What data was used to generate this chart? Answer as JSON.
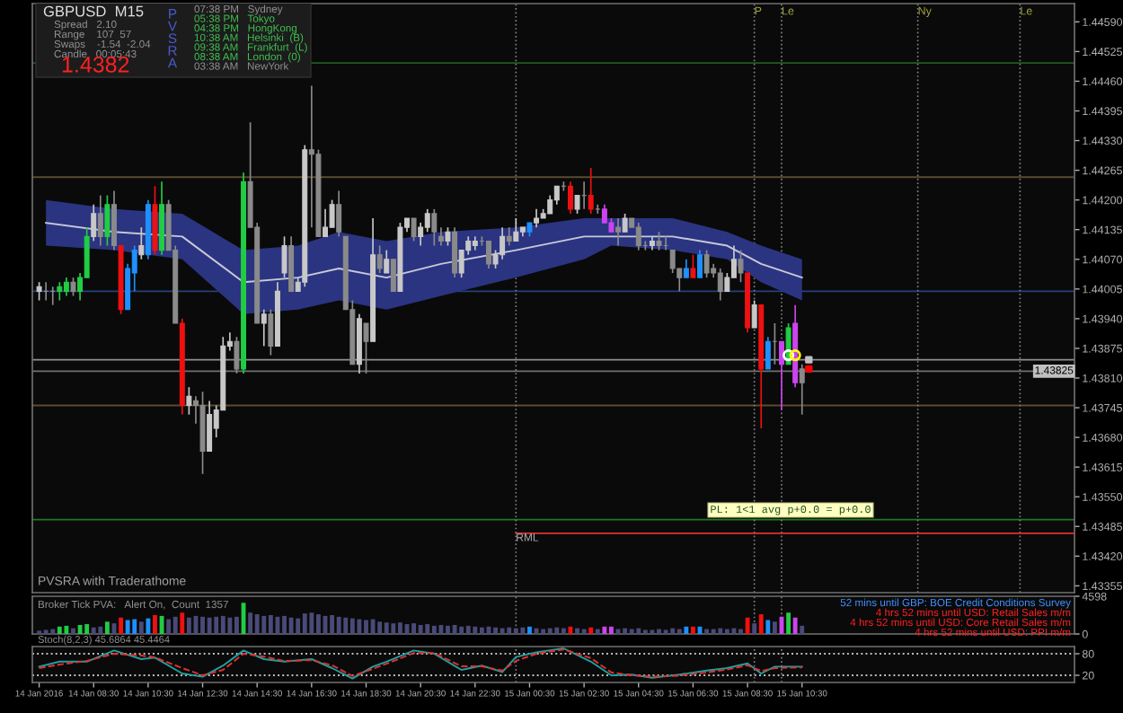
{
  "chart_data": [
    {
      "type": "candlestick",
      "xlim": [
        "2016-01-14T06:15",
        "2016-01-15T20:30"
      ],
      "ylim": [
        1.4334,
        1.4463
      ],
      "tick_labels": "y",
      "yticks": [
        {
          "value": 1.43355,
          "label": "1.43355"
        },
        {
          "value": 1.4342,
          "label": "1.43420"
        },
        {
          "value": 1.43485,
          "label": "1.43485"
        },
        {
          "value": 1.4355,
          "label": "1.43550"
        },
        {
          "value": 1.43615,
          "label": "1.43615"
        },
        {
          "value": 1.4368,
          "label": "1.43680"
        },
        {
          "value": 1.43745,
          "label": "1.43745"
        },
        {
          "value": 1.4381,
          "label": "1.43810"
        },
        {
          "value": 1.43875,
          "label": "1.43875"
        },
        {
          "value": 1.4394,
          "label": "1.43940"
        },
        {
          "value": 1.44005,
          "label": "1.44005"
        },
        {
          "value": 1.4407,
          "label": "1.44070"
        },
        {
          "value": 1.44135,
          "label": "1.44135"
        },
        {
          "value": 1.442,
          "label": "1.44200"
        },
        {
          "value": 1.44265,
          "label": "1.44265"
        },
        {
          "value": 1.4433,
          "label": "1.44330"
        },
        {
          "value": 1.44395,
          "label": "1.44395"
        },
        {
          "value": 1.4446,
          "label": "1.44460"
        },
        {
          "value": 1.44525,
          "label": "1.44525"
        },
        {
          "value": 1.4459,
          "label": "1.44590"
        }
      ],
      "x": [
        "2016-01-14T06:30",
        "2016-01-14T06:45",
        "2016-01-14T07:00",
        "2016-01-14T07:15",
        "2016-01-14T07:30",
        "2016-01-14T07:45",
        "2016-01-14T08:00",
        "2016-01-14T08:15",
        "2016-01-14T08:30",
        "2016-01-14T08:45",
        "2016-01-14T09:00",
        "2016-01-14T09:15",
        "2016-01-14T09:30",
        "2016-01-14T09:45",
        "2016-01-14T10:00",
        "2016-01-14T10:15",
        "2016-01-14T10:30",
        "2016-01-14T10:45",
        "2016-01-14T11:00",
        "2016-01-14T11:15",
        "2016-01-14T11:30",
        "2016-01-14T11:45",
        "2016-01-14T12:00",
        "2016-01-14T12:15",
        "2016-01-14T12:30",
        "2016-01-14T12:45",
        "2016-01-14T13:00",
        "2016-01-14T13:15",
        "2016-01-14T13:30",
        "2016-01-14T13:45",
        "2016-01-14T14:00",
        "2016-01-14T14:15",
        "2016-01-14T14:30",
        "2016-01-14T14:45",
        "2016-01-14T15:00",
        "2016-01-14T15:15",
        "2016-01-14T15:30",
        "2016-01-14T15:45",
        "2016-01-14T16:00",
        "2016-01-14T16:15",
        "2016-01-14T16:30",
        "2016-01-14T16:45",
        "2016-01-14T17:00",
        "2016-01-14T17:15",
        "2016-01-14T17:30",
        "2016-01-14T17:45",
        "2016-01-14T18:00",
        "2016-01-14T18:15",
        "2016-01-14T18:30",
        "2016-01-14T18:45",
        "2016-01-14T19:00",
        "2016-01-14T19:15",
        "2016-01-14T19:30",
        "2016-01-14T19:45",
        "2016-01-14T20:00",
        "2016-01-14T20:15",
        "2016-01-14T20:30",
        "2016-01-14T20:45",
        "2016-01-14T21:00",
        "2016-01-14T21:15",
        "2016-01-14T21:30",
        "2016-01-14T21:45",
        "2016-01-14T22:00",
        "2016-01-14T22:15",
        "2016-01-14T22:30",
        "2016-01-14T22:45",
        "2016-01-14T23:00",
        "2016-01-14T23:15",
        "2016-01-14T23:30",
        "2016-01-14T23:45",
        "2016-01-15T00:00",
        "2016-01-15T00:15",
        "2016-01-15T00:30",
        "2016-01-15T00:45",
        "2016-01-15T01:00",
        "2016-01-15T01:15",
        "2016-01-15T01:30",
        "2016-01-15T01:45",
        "2016-01-15T02:00",
        "2016-01-15T02:15",
        "2016-01-15T02:30",
        "2016-01-15T02:45",
        "2016-01-15T03:00",
        "2016-01-15T03:15",
        "2016-01-15T03:30",
        "2016-01-15T03:45",
        "2016-01-15T04:00",
        "2016-01-15T04:15",
        "2016-01-15T04:30",
        "2016-01-15T04:45",
        "2016-01-15T05:00",
        "2016-01-15T05:15",
        "2016-01-15T05:30",
        "2016-01-15T05:45",
        "2016-01-15T06:00",
        "2016-01-15T06:15",
        "2016-01-15T06:30",
        "2016-01-15T06:45",
        "2016-01-15T07:00",
        "2016-01-15T07:15",
        "2016-01-15T07:30",
        "2016-01-15T07:45",
        "2016-01-15T08:00",
        "2016-01-15T08:15",
        "2016-01-15T08:30",
        "2016-01-15T08:45",
        "2016-01-15T09:00",
        "2016-01-15T09:15",
        "2016-01-15T09:30",
        "2016-01-15T09:45",
        "2016-01-15T10:00",
        "2016-01-15T10:15",
        "2016-01-15T10:30"
      ],
      "ohlc": [
        [
          1.44,
          1.4402,
          1.4398,
          1.4401
        ],
        [
          1.44,
          1.4402,
          1.4398,
          1.44
        ],
        [
          1.44,
          1.4401,
          1.4397,
          1.44
        ],
        [
          1.44,
          1.4402,
          1.4398,
          1.4401
        ],
        [
          1.44,
          1.4403,
          1.4399,
          1.4402
        ],
        [
          1.4402,
          1.4403,
          1.4399,
          1.44
        ],
        [
          1.44,
          1.4404,
          1.4398,
          1.4403
        ],
        [
          1.4403,
          1.4414,
          1.4403,
          1.4412
        ],
        [
          1.4412,
          1.4419,
          1.4411,
          1.4417
        ],
        [
          1.4417,
          1.4421,
          1.441,
          1.4412
        ],
        [
          1.4412,
          1.4421,
          1.441,
          1.4419
        ],
        [
          1.4419,
          1.4422,
          1.4409,
          1.441
        ],
        [
          1.441,
          1.441,
          1.4395,
          1.4396
        ],
        [
          1.4396,
          1.4406,
          1.4396,
          1.4405
        ],
        [
          1.4404,
          1.441,
          1.44,
          1.4409
        ],
        [
          1.4408,
          1.4414,
          1.4407,
          1.441
        ],
        [
          1.4408,
          1.442,
          1.4407,
          1.4419
        ],
        [
          1.4419,
          1.4423,
          1.4408,
          1.4409
        ],
        [
          1.4409,
          1.4424,
          1.4408,
          1.4419
        ],
        [
          1.4419,
          1.442,
          1.4409,
          1.4409
        ],
        [
          1.4409,
          1.441,
          1.4393,
          1.4393
        ],
        [
          1.4393,
          1.4394,
          1.4373,
          1.4375
        ],
        [
          1.4375,
          1.4379,
          1.4373,
          1.4377
        ],
        [
          1.4376,
          1.4377,
          1.4371,
          1.4375
        ],
        [
          1.4375,
          1.4378,
          1.436,
          1.4365
        ],
        [
          1.4365,
          1.4376,
          1.4365,
          1.4373
        ],
        [
          1.437,
          1.4375,
          1.4368,
          1.4374
        ],
        [
          1.4374,
          1.439,
          1.4374,
          1.4388
        ],
        [
          1.4388,
          1.4391,
          1.4387,
          1.4389
        ],
        [
          1.4389,
          1.439,
          1.4382,
          1.4383
        ],
        [
          1.4383,
          1.4426,
          1.4382,
          1.4424
        ],
        [
          1.4424,
          1.4437,
          1.4414,
          1.4414
        ],
        [
          1.4414,
          1.4415,
          1.4393,
          1.4393
        ],
        [
          1.4393,
          1.4396,
          1.4388,
          1.4395
        ],
        [
          1.4395,
          1.4396,
          1.4386,
          1.4388
        ],
        [
          1.4388,
          1.4402,
          1.4388,
          1.44
        ],
        [
          1.4404,
          1.4412,
          1.4403,
          1.441
        ],
        [
          1.441,
          1.4412,
          1.44,
          1.44
        ],
        [
          1.44,
          1.4403,
          1.44,
          1.4402
        ],
        [
          1.4402,
          1.4432,
          1.4401,
          1.4431
        ],
        [
          1.4431,
          1.4445,
          1.4414,
          1.443
        ],
        [
          1.443,
          1.4431,
          1.4412,
          1.4412
        ],
        [
          1.4412,
          1.4418,
          1.4412,
          1.4414
        ],
        [
          1.4414,
          1.442,
          1.4414,
          1.4419
        ],
        [
          1.4419,
          1.4422,
          1.4412,
          1.4413
        ],
        [
          1.4412,
          1.4412,
          1.4396,
          1.4396
        ],
        [
          1.4396,
          1.4398,
          1.4384,
          1.4384
        ],
        [
          1.4384,
          1.4395,
          1.4382,
          1.4394
        ],
        [
          1.4393,
          1.4393,
          1.4382,
          1.4389
        ],
        [
          1.4389,
          1.4416,
          1.4389,
          1.4408
        ],
        [
          1.4408,
          1.441,
          1.4404,
          1.4405
        ],
        [
          1.4404,
          1.4409,
          1.4404,
          1.4407
        ],
        [
          1.4407,
          1.4407,
          1.44,
          1.44
        ],
        [
          1.44,
          1.4415,
          1.44,
          1.4414
        ],
        [
          1.4414,
          1.4416,
          1.4413,
          1.4416
        ],
        [
          1.4416,
          1.4416,
          1.4411,
          1.4412
        ],
        [
          1.4412,
          1.4415,
          1.441,
          1.4414
        ],
        [
          1.4414,
          1.4418,
          1.4413,
          1.4417
        ],
        [
          1.4417,
          1.4418,
          1.441,
          1.4413
        ],
        [
          1.4412,
          1.4414,
          1.441,
          1.4411
        ],
        [
          1.4411,
          1.4414,
          1.441,
          1.4413
        ],
        [
          1.4413,
          1.4414,
          1.4403,
          1.4404
        ],
        [
          1.4404,
          1.4409,
          1.4403,
          1.4409
        ],
        [
          1.4409,
          1.4412,
          1.4408,
          1.4411
        ],
        [
          1.441,
          1.4412,
          1.4409,
          1.4411
        ],
        [
          1.4411,
          1.4412,
          1.441,
          1.4411
        ],
        [
          1.4411,
          1.4411,
          1.4405,
          1.4406
        ],
        [
          1.4406,
          1.4409,
          1.4405,
          1.4408
        ],
        [
          1.4408,
          1.4414,
          1.4407,
          1.4412
        ],
        [
          1.4412,
          1.4414,
          1.441,
          1.4411
        ],
        [
          1.4411,
          1.4416,
          1.4411,
          1.4413
        ],
        [
          1.4413,
          1.4414,
          1.4412,
          1.4414
        ],
        [
          1.4413,
          1.4415,
          1.4412,
          1.4415
        ],
        [
          1.4415,
          1.4418,
          1.4414,
          1.4416
        ],
        [
          1.4416,
          1.4418,
          1.4416,
          1.4417
        ],
        [
          1.4417,
          1.4421,
          1.4417,
          1.442
        ],
        [
          1.442,
          1.4423,
          1.4419,
          1.4423
        ],
        [
          1.4423,
          1.4424,
          1.4422,
          1.4423
        ],
        [
          1.4423,
          1.4424,
          1.4417,
          1.4418
        ],
        [
          1.4418,
          1.4421,
          1.4417,
          1.4421
        ],
        [
          1.4421,
          1.4424,
          1.4418,
          1.4421
        ],
        [
          1.4421,
          1.4427,
          1.4417,
          1.4418
        ],
        [
          1.4418,
          1.4419,
          1.4417,
          1.4418
        ],
        [
          1.4418,
          1.4419,
          1.4415,
          1.4415
        ],
        [
          1.4415,
          1.4416,
          1.4413,
          1.4413
        ],
        [
          1.4414,
          1.4416,
          1.441,
          1.4413
        ],
        [
          1.4413,
          1.4417,
          1.4413,
          1.4416
        ],
        [
          1.4416,
          1.4416,
          1.4414,
          1.4414
        ],
        [
          1.4414,
          1.4415,
          1.4409,
          1.441
        ],
        [
          1.441,
          1.4411,
          1.4409,
          1.441
        ],
        [
          1.441,
          1.4412,
          1.4409,
          1.4411
        ],
        [
          1.4411,
          1.4413,
          1.4409,
          1.441
        ],
        [
          1.441,
          1.4412,
          1.4409,
          1.441
        ],
        [
          1.4409,
          1.4409,
          1.4404,
          1.4405
        ],
        [
          1.4405,
          1.4405,
          1.44,
          1.4403
        ],
        [
          1.4403,
          1.4407,
          1.4403,
          1.4405
        ],
        [
          1.4405,
          1.4408,
          1.4403,
          1.4403
        ],
        [
          1.4403,
          1.4409,
          1.4403,
          1.4408
        ],
        [
          1.4408,
          1.4409,
          1.4403,
          1.4404
        ],
        [
          1.4405,
          1.4406,
          1.4403,
          1.4404
        ],
        [
          1.4404,
          1.4405,
          1.4398,
          1.44
        ],
        [
          1.44,
          1.4404,
          1.44,
          1.4403
        ],
        [
          1.4403,
          1.441,
          1.4403,
          1.4407
        ],
        [
          1.4407,
          1.4409,
          1.4402,
          1.4404
        ],
        [
          1.4404,
          1.4404,
          1.4391,
          1.4392
        ],
        [
          1.4392,
          1.4398,
          1.4392,
          1.4397
        ],
        [
          1.4397,
          1.4397,
          1.437,
          1.4383
        ],
        [
          1.4383,
          1.439,
          1.4383,
          1.4389
        ],
        [
          1.4389,
          1.4393,
          1.4384,
          1.4389
        ],
        [
          1.4389,
          1.4389,
          1.4374,
          1.4384
        ],
        [
          1.4384,
          1.4393,
          1.4384,
          1.4392
        ],
        [
          1.4393,
          1.4397,
          1.4379,
          1.438
        ],
        [
          1.4383,
          1.4384,
          1.4373,
          1.438
        ]
      ],
      "colors": [
        "#c8c8c8",
        "#8a8a8a",
        "#8a8a8a",
        "#22cc44",
        "#22cc44",
        "#8a8a8a",
        "#22cc44",
        "#22cc44",
        "#c8c8c8",
        "#8a8a8a",
        "#22cc44",
        "#8a8a8a",
        "#ee1111",
        "#1e90ff",
        "#1e90ff",
        "#c8c8c8",
        "#1e90ff",
        "#ee1111",
        "#22cc44",
        "#8a8a8a",
        "#8a8a8a",
        "#ee1111",
        "#c8c8c8",
        "#8a8a8a",
        "#8a8a8a",
        "#c8c8c8",
        "#c8c8c8",
        "#c8c8c8",
        "#c8c8c8",
        "#8a8a8a",
        "#22cc44",
        "#8a8a8a",
        "#8a8a8a",
        "#c8c8c8",
        "#8a8a8a",
        "#c8c8c8",
        "#c8c8c8",
        "#8a8a8a",
        "#c8c8c8",
        "#c8c8c8",
        "#8a8a8a",
        "#8a8a8a",
        "#c8c8c8",
        "#c8c8c8",
        "#8a8a8a",
        "#8a8a8a",
        "#8a8a8a",
        "#c8c8c8",
        "#8a8a8a",
        "#c8c8c8",
        "#8a8a8a",
        "#c8c8c8",
        "#8a8a8a",
        "#c8c8c8",
        "#c8c8c8",
        "#8a8a8a",
        "#c8c8c8",
        "#c8c8c8",
        "#8a8a8a",
        "#8a8a8a",
        "#c8c8c8",
        "#8a8a8a",
        "#c8c8c8",
        "#c8c8c8",
        "#c8c8c8",
        "#8a8a8a",
        "#8a8a8a",
        "#c8c8c8",
        "#c8c8c8",
        "#8a8a8a",
        "#c8c8c8",
        "#c8c8c8",
        "#1e90ff",
        "#c8c8c8",
        "#c8c8c8",
        "#c8c8c8",
        "#c8c8c8",
        "#8a8a8a",
        "#ee1111",
        "#c8c8c8",
        "#8a8a8a",
        "#ee1111",
        "#8a8a8a",
        "#cc44ee",
        "#cc44ee",
        "#8a8a8a",
        "#c8c8c8",
        "#8a8a8a",
        "#8a8a8a",
        "#8a8a8a",
        "#c8c8c8",
        "#8a8a8a",
        "#8a8a8a",
        "#8a8a8a",
        "#8a8a8a",
        "#1e90ff",
        "#ee1111",
        "#1e90ff",
        "#8a8a8a",
        "#8a8a8a",
        "#8a8a8a",
        "#c8c8c8",
        "#c8c8c8",
        "#8a8a8a",
        "#ee1111",
        "#c8c8c8",
        "#ee1111",
        "#1e90ff",
        "#8a8a8a",
        "#cc44ee",
        "#22cc44",
        "#cc44ee",
        "#8a8a8a"
      ],
      "series": [
        {
          "type": "line",
          "color": "#c8c8d8",
          "x": [
            "2016-01-14T06:45",
            "2016-01-14T09:15",
            "2016-01-14T11:45",
            "2016-01-14T14:00",
            "2016-01-14T16:00",
            "2016-01-14T17:30",
            "2016-01-14T19:15",
            "2016-01-14T21:15",
            "2016-01-15T00:00",
            "2016-01-15T02:30",
            "2016-01-15T03:30",
            "2016-01-15T05:45",
            "2016-01-15T07:45",
            "2016-01-15T09:00",
            "2016-01-15T10:30"
          ],
          "values": [
            1.4415,
            1.4413,
            1.4412,
            1.4402,
            1.4403,
            1.4405,
            1.4403,
            1.4406,
            1.4409,
            1.4412,
            1.4412,
            1.4412,
            1.441,
            1.4406,
            1.4403
          ],
          "lower": [
            1.441,
            1.4409,
            1.4407,
            1.4395,
            1.4396,
            1.4398,
            1.4396,
            1.4399,
            1.4403,
            1.4407,
            1.441,
            1.4409,
            1.4407,
            1.4402,
            1.4398
          ],
          "upper": [
            1.442,
            1.4418,
            1.4417,
            1.4409,
            1.441,
            1.4413,
            1.4411,
            1.4413,
            1.4414,
            1.4416,
            1.4416,
            1.4416,
            1.4413,
            1.441,
            1.4407
          ]
        },
        {
          "type": "line",
          "name": "RML",
          "color": "#e03030",
          "x": [
            "2016-01-15T00:00",
            "2016-01-15T20:30"
          ],
          "values": [
            1.4347,
            1.4347
          ]
        },
        {
          "type": "scatter",
          "marker": "circle",
          "colors": [
            "#ffffff",
            "#ffff00"
          ],
          "x": [
            "2016-01-15T10:00",
            "2016-01-15T10:15"
          ],
          "values": [
            1.4386,
            1.4386
          ]
        },
        {
          "type": "scatter",
          "marker": "square",
          "colors": [
            "#c0c0c0",
            "#ff0000"
          ],
          "x": [
            "2016-01-15T10:45",
            "2016-01-15T10:45"
          ],
          "values": [
            1.4385,
            1.4383
          ]
        }
      ],
      "ref_lines": [
        {
          "axis": "y",
          "value": 1.445,
          "color": "#1f5a1f"
        },
        {
          "axis": "y",
          "value": 1.4425,
          "color": "#5a4a30"
        },
        {
          "axis": "y",
          "value": 1.44,
          "color": "#24407a"
        },
        {
          "axis": "y",
          "value": 1.4385,
          "color": "#909090"
        },
        {
          "axis": "y",
          "value": 1.43825,
          "label": "1.43825",
          "color": "#707070"
        },
        {
          "axis": "y",
          "value": 1.4375,
          "color": "#5a4a30"
        },
        {
          "axis": "y",
          "value": 1.435,
          "color": "#1f7a1f"
        },
        {
          "axis": "x",
          "value": "2016-01-15T00:00",
          "color": "#808080",
          "line_style": "dotted"
        },
        {
          "axis": "x",
          "value": "2016-01-15T08:45",
          "label": "P",
          "color": "#808080",
          "line_style": "dotted"
        },
        {
          "axis": "x",
          "value": "2016-01-15T09:45",
          "label": "Le",
          "color": "#808080",
          "line_style": "dotted"
        },
        {
          "axis": "x",
          "value": "2016-01-15T14:45",
          "label": "Ny",
          "color": "#808080",
          "line_style": "dotted"
        },
        {
          "axis": "x",
          "value": "2016-01-15T18:30",
          "label": "Le",
          "color": "#808080",
          "line_style": "dotted"
        }
      ],
      "annotations": [
        "GBPUSD  M15",
        "Spread   2.10",
        "Range    107  57",
        "Swaps    -1.54  -2.04",
        "Candle   00:05:43",
        "1.4382",
        "PVSRA",
        "07:38 PM   Sydney",
        "05:38 PM   Tokyo",
        "04:38 PM   HongKong",
        "10:38 AM   Helsinki  (B)",
        "09:38 AM   Frankfurt  (L)",
        "08:38 AM   London  (0)",
        "03:38 AM   NewYork",
        "PVSRA with Traderathome",
        "PL: 1<1 avg p+0.0 = p+0.0"
      ]
    },
    {
      "type": "bar",
      "xlim": [
        "2016-01-14T06:15",
        "2016-01-15T20:30"
      ],
      "ylim": [
        0,
        4598
      ],
      "yticks": [
        0,
        4598
      ],
      "tick_labels": "y",
      "x": [
        "2016-01-14T06:30",
        "2016-01-14T06:45",
        "2016-01-14T07:00",
        "2016-01-14T07:15",
        "2016-01-14T07:30",
        "2016-01-14T07:45",
        "2016-01-14T08:00",
        "2016-01-14T08:15",
        "2016-01-14T08:30",
        "2016-01-14T08:45",
        "2016-01-14T09:00",
        "2016-01-14T09:15",
        "2016-01-14T09:30",
        "2016-01-14T09:45",
        "2016-01-14T10:00",
        "2016-01-14T10:15",
        "2016-01-14T10:30",
        "2016-01-14T10:45",
        "2016-01-14T11:00",
        "2016-01-14T11:15",
        "2016-01-14T11:30",
        "2016-01-14T11:45",
        "2016-01-14T12:00",
        "2016-01-14T12:15",
        "2016-01-14T12:30",
        "2016-01-14T12:45",
        "2016-01-14T13:00",
        "2016-01-14T13:15",
        "2016-01-14T13:30",
        "2016-01-14T13:45",
        "2016-01-14T14:00",
        "2016-01-14T14:15",
        "2016-01-14T14:30",
        "2016-01-14T14:45",
        "2016-01-14T15:00",
        "2016-01-14T15:15",
        "2016-01-14T15:30",
        "2016-01-14T15:45",
        "2016-01-14T16:00",
        "2016-01-14T16:15",
        "2016-01-14T16:30",
        "2016-01-14T16:45",
        "2016-01-14T17:00",
        "2016-01-14T17:15",
        "2016-01-14T17:30",
        "2016-01-14T17:45",
        "2016-01-14T18:00",
        "2016-01-14T18:15",
        "2016-01-14T18:30",
        "2016-01-14T18:45",
        "2016-01-14T19:00",
        "2016-01-14T19:15",
        "2016-01-14T19:30",
        "2016-01-14T19:45",
        "2016-01-14T20:00",
        "2016-01-14T20:15",
        "2016-01-14T20:30",
        "2016-01-14T20:45",
        "2016-01-14T21:00",
        "2016-01-14T21:15",
        "2016-01-14T21:30",
        "2016-01-14T21:45",
        "2016-01-14T22:00",
        "2016-01-14T22:15",
        "2016-01-14T22:30",
        "2016-01-14T22:45",
        "2016-01-14T23:00",
        "2016-01-14T23:15",
        "2016-01-14T23:30",
        "2016-01-14T23:45",
        "2016-01-15T00:00",
        "2016-01-15T00:15",
        "2016-01-15T00:30",
        "2016-01-15T00:45",
        "2016-01-15T01:00",
        "2016-01-15T01:15",
        "2016-01-15T01:30",
        "2016-01-15T01:45",
        "2016-01-15T02:00",
        "2016-01-15T02:15",
        "2016-01-15T02:30",
        "2016-01-15T02:45",
        "2016-01-15T03:00",
        "2016-01-15T03:15",
        "2016-01-15T03:30",
        "2016-01-15T03:45",
        "2016-01-15T04:00",
        "2016-01-15T04:15",
        "2016-01-15T04:30",
        "2016-01-15T04:45",
        "2016-01-15T05:00",
        "2016-01-15T05:15",
        "2016-01-15T05:30",
        "2016-01-15T05:45",
        "2016-01-15T06:00",
        "2016-01-15T06:15",
        "2016-01-15T06:30",
        "2016-01-15T06:45",
        "2016-01-15T07:00",
        "2016-01-15T07:15",
        "2016-01-15T07:30",
        "2016-01-15T07:45",
        "2016-01-15T08:00",
        "2016-01-15T08:15",
        "2016-01-15T08:30",
        "2016-01-15T08:45",
        "2016-01-15T09:00",
        "2016-01-15T09:15",
        "2016-01-15T09:30",
        "2016-01-15T09:45",
        "2016-01-15T10:00",
        "2016-01-15T10:15",
        "2016-01-15T10:30"
      ],
      "values": [
        400,
        500,
        600,
        900,
        1000,
        700,
        1100,
        1200,
        800,
        900,
        1500,
        1300,
        2000,
        1700,
        1800,
        1500,
        1900,
        2300,
        2200,
        1800,
        2100,
        2600,
        2000,
        2200,
        2100,
        2000,
        2100,
        2200,
        2000,
        2100,
        3800,
        2600,
        2400,
        2200,
        2300,
        2100,
        2200,
        2000,
        1900,
        2500,
        2600,
        2400,
        2200,
        2300,
        2100,
        2000,
        1900,
        1800,
        1700,
        1800,
        1500,
        1400,
        1300,
        1400,
        1200,
        1300,
        1100,
        1200,
        1000,
        1100,
        1000,
        1100,
        900,
        1000,
        900,
        800,
        900,
        800,
        700,
        800,
        700,
        800,
        900,
        700,
        600,
        700,
        800,
        700,
        900,
        700,
        600,
        800,
        600,
        900,
        900,
        600,
        700,
        600,
        700,
        500,
        500,
        600,
        500,
        700,
        600,
        900,
        900,
        900,
        600,
        600,
        700,
        600,
        700,
        600,
        2000,
        1300,
        2400,
        1700,
        1500,
        2100,
        2600,
        2000,
        1000
      ],
      "colors": [
        "#4a4a78",
        "#4a4a78",
        "#4a4a78",
        "#22cc44",
        "#22cc44",
        "#4a4a78",
        "#22cc44",
        "#22cc44",
        "#4a4a78",
        "#4a4a78",
        "#22cc44",
        "#4a4a78",
        "#ee1111",
        "#1e90ff",
        "#1e90ff",
        "#4a4a78",
        "#1e90ff",
        "#ee1111",
        "#22cc44",
        "#4a4a78",
        "#4a4a78",
        "#ee1111",
        "#4a4a78",
        "#4a4a78",
        "#4a4a78",
        "#4a4a78",
        "#4a4a78",
        "#4a4a78",
        "#4a4a78",
        "#4a4a78",
        "#22cc44",
        "#4a4a78",
        "#4a4a78",
        "#4a4a78",
        "#4a4a78",
        "#4a4a78",
        "#4a4a78",
        "#4a4a78",
        "#4a4a78",
        "#4a4a78",
        "#4a4a78",
        "#4a4a78",
        "#4a4a78",
        "#4a4a78",
        "#4a4a78",
        "#4a4a78",
        "#4a4a78",
        "#4a4a78",
        "#4a4a78",
        "#4a4a78",
        "#4a4a78",
        "#4a4a78",
        "#4a4a78",
        "#4a4a78",
        "#4a4a78",
        "#4a4a78",
        "#4a4a78",
        "#4a4a78",
        "#4a4a78",
        "#4a4a78",
        "#4a4a78",
        "#4a4a78",
        "#4a4a78",
        "#4a4a78",
        "#4a4a78",
        "#4a4a78",
        "#4a4a78",
        "#4a4a78",
        "#4a4a78",
        "#4a4a78",
        "#4a4a78",
        "#4a4a78",
        "#1e90ff",
        "#4a4a78",
        "#4a4a78",
        "#4a4a78",
        "#4a4a78",
        "#4a4a78",
        "#ee1111",
        "#4a4a78",
        "#4a4a78",
        "#ee1111",
        "#4a4a78",
        "#cc44ee",
        "#cc44ee",
        "#4a4a78",
        "#4a4a78",
        "#4a4a78",
        "#4a4a78",
        "#4a4a78",
        "#4a4a78",
        "#4a4a78",
        "#4a4a78",
        "#4a4a78",
        "#4a4a78",
        "#1e90ff",
        "#ee1111",
        "#1e90ff",
        "#4a4a78",
        "#4a4a78",
        "#4a4a78",
        "#4a4a78",
        "#4a4a78",
        "#4a4a78",
        "#ee1111",
        "#4a4a78",
        "#ee1111",
        "#1e90ff",
        "#4a4a78",
        "#cc44ee",
        "#22cc44",
        "#cc44ee",
        "#4a4a78"
      ],
      "ref_lines": [
        {
          "axis": "x",
          "value": "2016-01-15T00:00",
          "color": "#808080",
          "line_style": "dotted"
        },
        {
          "axis": "x",
          "value": "2016-01-15T08:45",
          "color": "#808080",
          "line_style": "dotted"
        },
        {
          "axis": "x",
          "value": "2016-01-15T09:45",
          "color": "#808080",
          "line_style": "dotted"
        }
      ],
      "annotations": [
        "Broker Tick PVA:   Alert On,  Count  1357",
        "52 mins until GBP: BOE Credit Conditions Survey",
        "4 hrs 52 mins until USD: Retail Sales m/m",
        "4 hrs 52 mins until USD: Core Retail Sales m/m",
        "4 hrs 52 mins until USD: PPI m/m"
      ]
    },
    {
      "type": "line",
      "xlim": [
        "2016-01-14T06:15",
        "2016-01-15T20:30"
      ],
      "ylim": [
        0,
        100
      ],
      "yticks": [
        20,
        80
      ],
      "xticks": [
        {
          "value": "2016-01-14T06:30",
          "label": "14 Jan 2016"
        },
        {
          "value": "2016-01-14T08:30",
          "label": "14 Jan 08:30"
        },
        {
          "value": "2016-01-14T10:30",
          "label": "14 Jan 10:30"
        },
        {
          "value": "2016-01-14T12:30",
          "label": "14 Jan 12:30"
        },
        {
          "value": "2016-01-14T14:30",
          "label": "14 Jan 14:30"
        },
        {
          "value": "2016-01-14T16:30",
          "label": "14 Jan 16:30"
        },
        {
          "value": "2016-01-14T18:30",
          "label": "14 Jan 18:30"
        },
        {
          "value": "2016-01-14T20:30",
          "label": "14 Jan 20:30"
        },
        {
          "value": "2016-01-14T22:30",
          "label": "14 Jan 22:30"
        },
        {
          "value": "2016-01-15T00:30",
          "label": "15 Jan 00:30"
        },
        {
          "value": "2016-01-15T02:30",
          "label": "15 Jan 02:30"
        },
        {
          "value": "2016-01-15T04:30",
          "label": "15 Jan 04:30"
        },
        {
          "value": "2016-01-15T06:30",
          "label": "15 Jan 06:30"
        },
        {
          "value": "2016-01-15T08:30",
          "label": "15 Jan 08:30"
        },
        {
          "value": "2016-01-15T10:30",
          "label": "15 Jan 10:30"
        }
      ],
      "x": [
        "2016-01-14T06:30",
        "2016-01-14T07:15",
        "2016-01-14T08:15",
        "2016-01-14T09:15",
        "2016-01-14T10:15",
        "2016-01-14T10:45",
        "2016-01-14T11:45",
        "2016-01-14T12:30",
        "2016-01-14T13:15",
        "2016-01-14T14:00",
        "2016-01-14T14:45",
        "2016-01-14T15:30",
        "2016-01-14T16:30",
        "2016-01-14T17:15",
        "2016-01-14T18:00",
        "2016-01-14T18:45",
        "2016-01-14T19:15",
        "2016-01-14T20:15",
        "2016-01-14T21:00",
        "2016-01-14T22:00",
        "2016-01-14T22:45",
        "2016-01-14T23:30",
        "2016-01-15T00:00",
        "2016-01-15T00:45",
        "2016-01-15T01:45",
        "2016-01-15T02:45",
        "2016-01-15T03:30",
        "2016-01-15T04:15",
        "2016-01-15T05:00",
        "2016-01-15T06:00",
        "2016-01-15T07:00",
        "2016-01-15T07:45",
        "2016-01-15T08:30",
        "2016-01-15T09:00",
        "2016-01-15T09:30",
        "2016-01-15T10:30"
      ],
      "series": [
        {
          "color": "#20a0a0",
          "values": [
            44,
            58,
            58,
            89,
            65,
            69,
            25,
            16,
            47,
            89,
            65,
            58,
            65,
            40,
            11,
            44,
            58,
            89,
            80,
            35,
            47,
            29,
            71,
            84,
            95,
            58,
            20,
            22,
            13,
            22,
            33,
            40,
            53,
            25,
            44,
            44
          ]
        },
        {
          "color": "#e03030",
          "line_style": "dashed",
          "values": [
            40,
            50,
            60,
            80,
            75,
            70,
            40,
            20,
            35,
            80,
            72,
            60,
            62,
            48,
            18,
            38,
            52,
            82,
            82,
            45,
            45,
            33,
            60,
            80,
            92,
            68,
            28,
            20,
            16,
            19,
            28,
            36,
            48,
            32,
            40,
            42
          ]
        }
      ],
      "ref_lines": [
        {
          "axis": "y",
          "value": 80,
          "color": "#c0c0c0",
          "line_style": "dotted"
        },
        {
          "axis": "y",
          "value": 20,
          "color": "#c0c0c0",
          "line_style": "dotted"
        },
        {
          "axis": "x",
          "value": "2016-01-15T00:00",
          "color": "#808080",
          "line_style": "dotted"
        },
        {
          "axis": "x",
          "value": "2016-01-15T08:45",
          "color": "#808080",
          "line_style": "dotted"
        },
        {
          "axis": "x",
          "value": "2016-01-15T09:45",
          "color": "#808080",
          "line_style": "dotted"
        }
      ],
      "annotations": [
        "Stoch(8,2,3) 45.6864 45.4464"
      ]
    }
  ]
}
